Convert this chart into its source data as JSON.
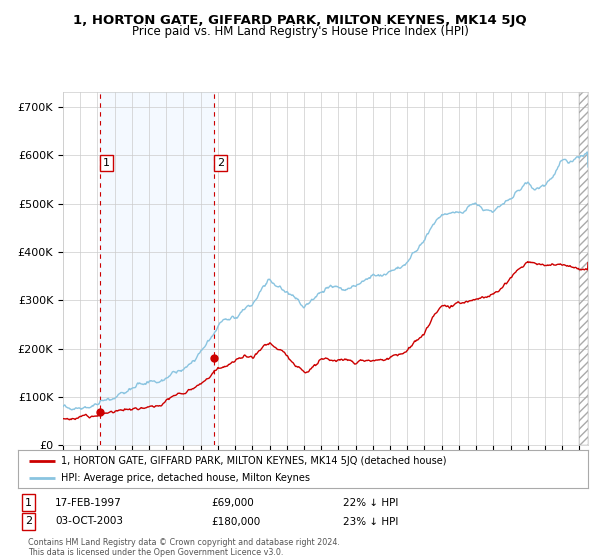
{
  "title": "1, HORTON GATE, GIFFARD PARK, MILTON KEYNES, MK14 5JQ",
  "subtitle": "Price paid vs. HM Land Registry's House Price Index (HPI)",
  "xlim_start": 1995.0,
  "xlim_end": 2025.5,
  "ylim": [
    0,
    730000
  ],
  "yticks": [
    0,
    100000,
    200000,
    300000,
    400000,
    500000,
    600000,
    700000
  ],
  "ytick_labels": [
    "£0",
    "£100K",
    "£200K",
    "£300K",
    "£400K",
    "£500K",
    "£600K",
    "£700K"
  ],
  "sale1_date_num": 1997.13,
  "sale1_price": 69000,
  "sale1_label": "1",
  "sale2_date_num": 2003.75,
  "sale2_price": 180000,
  "sale2_label": "2",
  "hpi_line_color": "#8ac4e0",
  "price_line_color": "#cc0000",
  "marker_color": "#cc0000",
  "shade_color": "#ddeeff",
  "vline_color": "#cc0000",
  "grid_color": "#cccccc",
  "background_color": "#ffffff",
  "legend_line1": "1, HORTON GATE, GIFFARD PARK, MILTON KEYNES, MK14 5JQ (detached house)",
  "legend_line2": "HPI: Average price, detached house, Milton Keynes",
  "note1_box": "1",
  "note1_date": "17-FEB-1997",
  "note1_price": "£69,000",
  "note1_hpi": "22% ↓ HPI",
  "note2_box": "2",
  "note2_date": "03-OCT-2003",
  "note2_price": "£180,000",
  "note2_hpi": "23% ↓ HPI",
  "footer": "Contains HM Land Registry data © Crown copyright and database right 2024.\nThis data is licensed under the Open Government Licence v3.0.",
  "hpi_key_years": [
    1995.0,
    1996.0,
    1997.0,
    1998.0,
    1999.0,
    2000.0,
    2001.0,
    2002.0,
    2003.0,
    2004.0,
    2005.0,
    2006.0,
    2007.0,
    2007.7,
    2008.5,
    2009.0,
    2009.5,
    2010.0,
    2011.0,
    2012.0,
    2013.0,
    2014.0,
    2015.0,
    2016.0,
    2016.5,
    2017.0,
    2018.0,
    2019.0,
    2020.0,
    2021.0,
    2021.5,
    2022.0,
    2022.5,
    2023.0,
    2023.5,
    2024.0,
    2025.0,
    2025.5
  ],
  "hpi_key_vals": [
    80000,
    85000,
    90000,
    100000,
    112000,
    128000,
    145000,
    162000,
    200000,
    240000,
    247000,
    265000,
    305000,
    285000,
    265000,
    252000,
    258000,
    265000,
    272000,
    268000,
    278000,
    295000,
    310000,
    360000,
    395000,
    415000,
    420000,
    430000,
    420000,
    440000,
    460000,
    470000,
    455000,
    450000,
    480000,
    510000,
    520000,
    530000
  ],
  "price_key_years": [
    1995.0,
    1996.0,
    1997.0,
    1997.13,
    1998.0,
    1999.0,
    2000.0,
    2001.0,
    2002.0,
    2003.0,
    2003.75,
    2004.0,
    2005.0,
    2006.0,
    2007.0,
    2007.7,
    2008.5,
    2009.0,
    2009.3,
    2010.0,
    2011.0,
    2012.0,
    2013.0,
    2014.0,
    2015.0,
    2016.0,
    2016.5,
    2017.0,
    2018.0,
    2019.0,
    2020.0,
    2021.0,
    2022.0,
    2023.0,
    2024.0,
    2025.0,
    2025.5
  ],
  "price_key_vals": [
    55000,
    60000,
    65000,
    69000,
    75000,
    88000,
    100000,
    115000,
    130000,
    155000,
    180000,
    190000,
    195000,
    205000,
    235000,
    215000,
    185000,
    175000,
    180000,
    195000,
    200000,
    195000,
    210000,
    220000,
    240000,
    285000,
    315000,
    335000,
    340000,
    345000,
    345000,
    370000,
    400000,
    400000,
    400000,
    400000,
    400000
  ]
}
